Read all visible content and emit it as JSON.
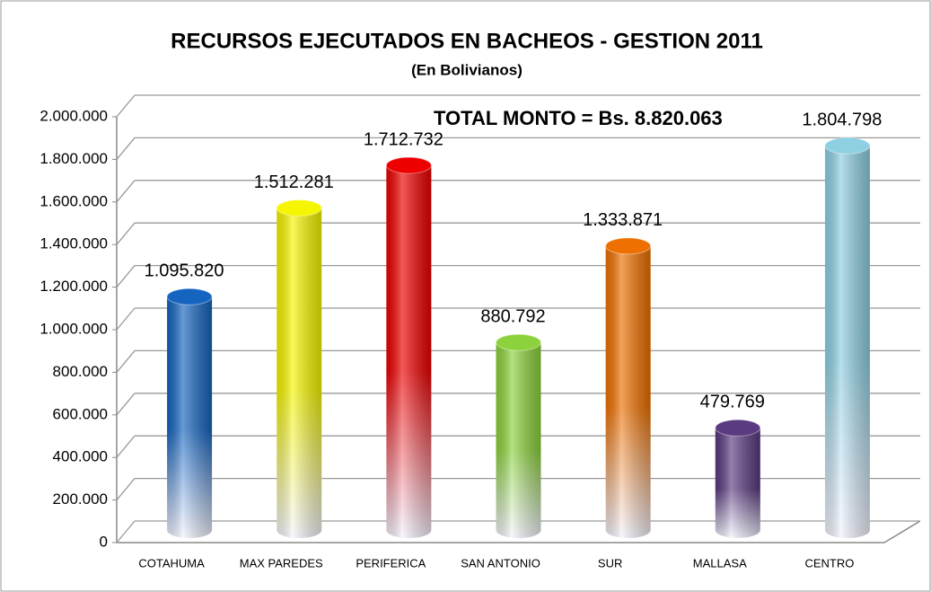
{
  "chart_data": {
    "type": "bar",
    "title": "RECURSOS EJECUTADOS EN BACHEOS - GESTION 2011",
    "subtitle": "(En Bolivianos)",
    "annotation": "TOTAL  MONTO  = Bs. 8.820.063",
    "categories": [
      "COTAHUMA",
      "MAX PAREDES",
      "PERIFERICA",
      "SAN ANTONIO",
      "SUR",
      "MALLASA",
      "CENTRO"
    ],
    "values": [
      1095820,
      1512281,
      1712732,
      880792,
      1333871,
      479769,
      1804798
    ],
    "value_labels": [
      "1.095.820",
      "1.512.281",
      "1.712.732",
      "880.792",
      "1.333.871",
      "479.769",
      "1.804.798"
    ],
    "colors": [
      "#1565c0",
      "#f5f500",
      "#ee0000",
      "#8cd23c",
      "#ee7000",
      "#5a3a80",
      "#8ecfe2"
    ],
    "ylim": [
      0,
      2000000
    ],
    "yticks": [
      0,
      {
        "value": 200000,
        "label": "200.000"
      },
      {
        "value": 400000,
        "label": "400.000"
      },
      {
        "value": 600000,
        "label": "600.000"
      },
      {
        "value": 800000,
        "label": "800.000"
      },
      {
        "value": 1000000,
        "label": "1.000.000"
      },
      {
        "value": 1200000,
        "label": "1.200.000"
      },
      {
        "value": 1400000,
        "label": "1.400.000"
      },
      {
        "value": 1600000,
        "label": "1.600.000"
      },
      {
        "value": 1800000,
        "label": "1.800.000"
      },
      {
        "value": 2000000,
        "label": "2.000.000"
      }
    ],
    "grid": true
  }
}
